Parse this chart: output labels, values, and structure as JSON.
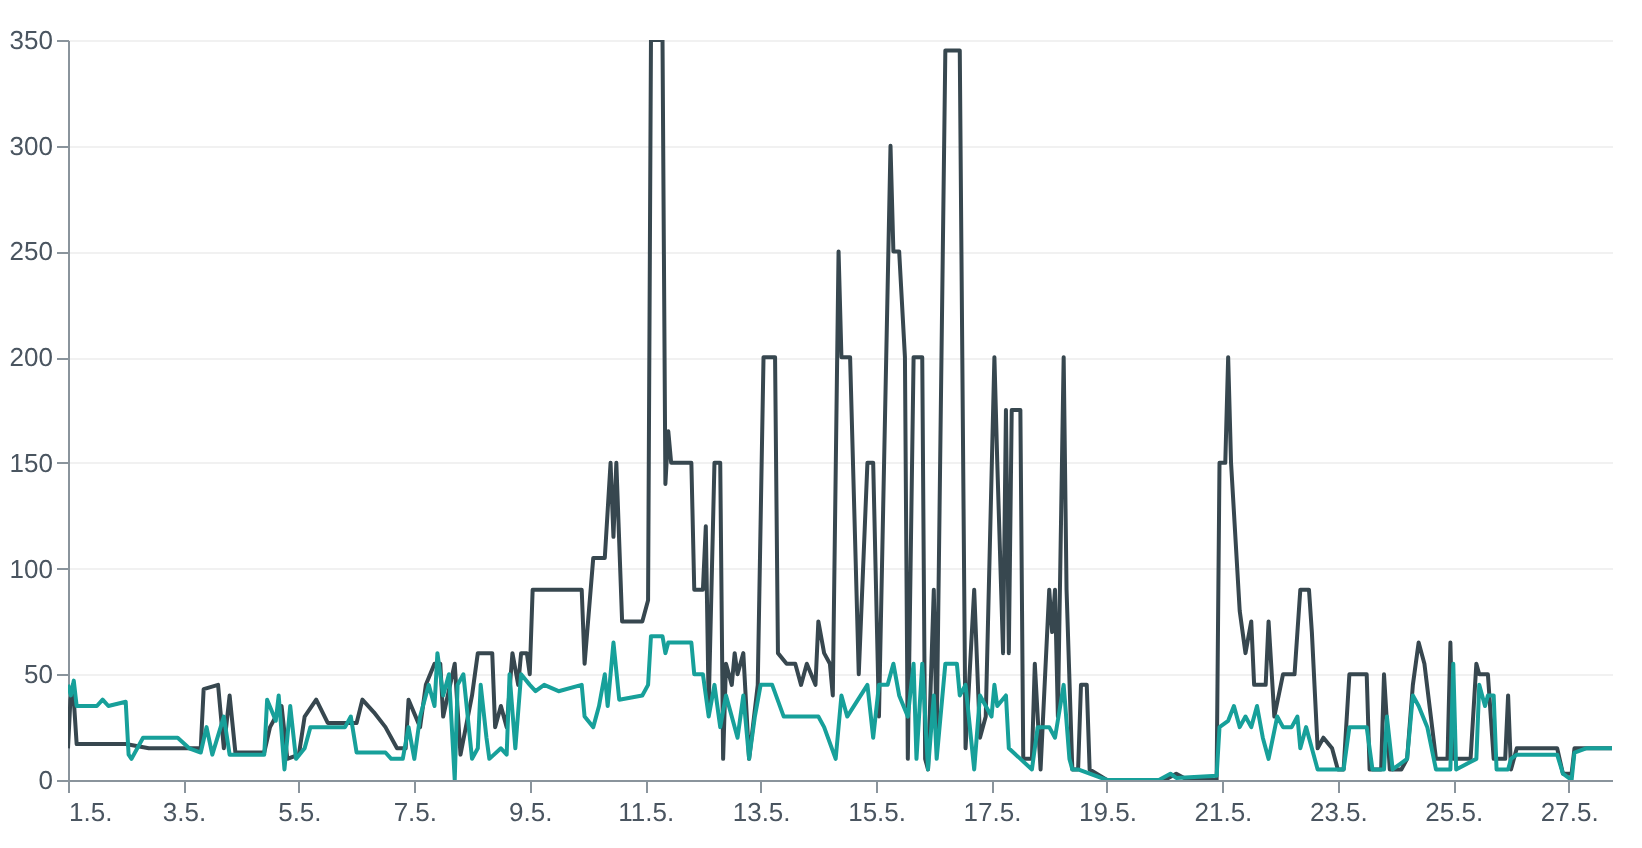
{
  "chart_data": {
    "type": "line",
    "xlim": [
      "--05-01",
      "--05-27T18:00"
    ],
    "xticks": [
      {
        "value": "--05-01",
        "label": "1.5."
      },
      {
        "value": "--05-03",
        "label": "3.5."
      },
      {
        "value": "--05-05",
        "label": "5.5."
      },
      {
        "value": "--05-07",
        "label": "7.5."
      },
      {
        "value": "--05-09",
        "label": "9.5."
      },
      {
        "value": "--05-11",
        "label": "11.5."
      },
      {
        "value": "--05-13",
        "label": "13.5."
      },
      {
        "value": "--05-15",
        "label": "15.5."
      },
      {
        "value": "--05-17",
        "label": "17.5."
      },
      {
        "value": "--05-19",
        "label": "19.5."
      },
      {
        "value": "--05-21",
        "label": "21.5."
      },
      {
        "value": "--05-23",
        "label": "23.5."
      },
      {
        "value": "--05-25",
        "label": "25.5."
      },
      {
        "value": "--05-27",
        "label": "27.5."
      }
    ],
    "ylim": [
      0,
      350
    ],
    "yticks": [
      0,
      50,
      100,
      150,
      200,
      250,
      300,
      350
    ],
    "grid": "y",
    "line_style": "solid",
    "series": [
      {
        "color": "#37474f",
        "x": [
          "--05-01T00:00",
          "--05-01T01:00",
          "--05-01T02:00",
          "--05-01T03:36",
          "--05-01T12:00",
          "--05-02T00:00",
          "--05-02T09:36",
          "--05-03T07:12",
          "--05-03T08:24",
          "--05-03T14:24",
          "--05-03T16:48",
          "--05-03T19:12",
          "--05-03T21:36",
          "--05-04T09:36",
          "--05-04T12:00",
          "--05-04T16:48",
          "--05-04T19:12",
          "--05-05T00:00",
          "--05-05T02:24",
          "--05-05T07:12",
          "--05-05T12:00",
          "--05-06T00:00",
          "--05-06T02:24",
          "--05-06T07:12",
          "--05-06T12:00",
          "--05-06T16:48",
          "--05-06T20:24",
          "--05-06T21:36",
          "--05-07T02:24",
          "--05-07T04:48",
          "--05-07T08:24",
          "--05-07T10:48",
          "--05-07T12:00",
          "--05-07T16:48",
          "--05-07T19:12",
          "--05-08T00:00",
          "--05-08T02:24",
          "--05-08T08:24",
          "--05-08T09:36",
          "--05-08T12:00",
          "--05-08T14:24",
          "--05-08T16:48",
          "--05-08T19:12",
          "--05-08T20:24",
          "--05-08T22:48",
          "--05-09T00:00",
          "--05-09T01:12",
          "--05-09T21:36",
          "--05-09T22:48",
          "--05-10T02:24",
          "--05-10T07:12",
          "--05-10T09:36",
          "--05-10T10:48",
          "--05-10T12:00",
          "--05-10T14:24",
          "--05-10T22:48",
          "--05-11T01:12",
          "--05-11T02:24",
          "--05-11T07:12",
          "--05-11T08:24",
          "--05-11T09:36",
          "--05-11T10:48",
          "--05-11T19:12",
          "--05-11T20:24",
          "--05-12T00:00",
          "--05-12T01:12",
          "--05-12T02:24",
          "--05-12T04:48",
          "--05-12T07:12",
          "--05-12T08:24",
          "--05-12T09:36",
          "--05-12T12:00",
          "--05-12T13:12",
          "--05-12T14:24",
          "--05-12T16:48",
          "--05-12T19:12",
          "--05-12T22:48",
          "--05-13T01:12",
          "--05-13T06:00",
          "--05-13T07:12",
          "--05-13T10:48",
          "--05-13T14:24",
          "--05-13T16:48",
          "--05-13T19:12",
          "--05-13T22:48",
          "--05-14T00:00",
          "--05-14T02:24",
          "--05-14T04:48",
          "--05-14T06:00",
          "--05-14T08:24",
          "--05-14T09:36",
          "--05-14T13:12",
          "--05-14T16:48",
          "--05-14T20:24",
          "--05-14T22:48",
          "--05-15T01:12",
          "--05-15T06:00",
          "--05-15T07:12",
          "--05-15T09:36",
          "--05-15T12:00",
          "--05-15T13:12",
          "--05-15T15:36",
          "--05-15T19:12",
          "--05-15T20:24",
          "--05-15T21:36",
          "--05-16T00:00",
          "--05-16T01:12",
          "--05-16T04:48",
          "--05-16T10:48",
          "--05-16T13:12",
          "--05-16T16:48",
          "--05-16T19:12",
          "--05-16T21:36",
          "--05-17T01:12",
          "--05-17T02:24",
          "--05-17T04:48",
          "--05-17T06:00",
          "--05-17T07:12",
          "--05-17T08:24",
          "--05-17T12:00",
          "--05-17T13:12",
          "--05-17T16:48",
          "--05-17T18:00",
          "--05-17T20:24",
          "--05-18T00:00",
          "--05-18T01:12",
          "--05-18T02:24",
          "--05-18T03:36",
          "--05-18T06:00",
          "--05-18T07:12",
          "--05-18T09:36",
          "--05-18T12:00",
          "--05-18T13:12",
          "--05-18T15:36",
          "--05-18T16:48",
          "--05-19T00:00",
          "--05-20T00:00",
          "--05-20T04:48",
          "--05-20T09:36",
          "--05-20T21:36",
          "--05-20T22:48",
          "--05-21T01:12",
          "--05-21T02:24",
          "--05-21T03:36",
          "--05-21T07:12",
          "--05-21T09:36",
          "--05-21T12:00",
          "--05-21T13:12",
          "--05-21T18:00",
          "--05-21T19:12",
          "--05-21T21:36",
          "--05-22T01:12",
          "--05-22T06:00",
          "--05-22T08:24",
          "--05-22T12:00",
          "--05-22T13:12",
          "--05-22T15:36",
          "--05-22T18:00",
          "--05-22T21:36",
          "--05-23T00:00",
          "--05-23T02:24",
          "--05-23T04:48",
          "--05-23T12:00",
          "--05-23T13:12",
          "--05-23T18:00",
          "--05-23T19:12",
          "--05-23T21:36",
          "--05-24T02:24",
          "--05-24T04:48",
          "--05-24T07:12",
          "--05-24T09:36",
          "--05-24T12:00",
          "--05-24T16:48",
          "--05-24T21:36",
          "--05-24T22:48",
          "--05-25T00:00",
          "--05-25T07:12",
          "--05-25T09:36",
          "--05-25T10:48",
          "--05-25T14:24",
          "--05-25T16:48",
          "--05-25T21:36",
          "--05-25T22:48",
          "--05-26T00:00",
          "--05-26T02:24",
          "--05-26T19:12",
          "--05-26T21:36",
          "--05-27T01:12",
          "--05-27T02:24",
          "--05-27T18:00"
        ],
        "values": [
          15,
          38,
          45,
          17,
          17,
          17,
          15,
          15,
          43,
          45,
          15,
          40,
          13,
          13,
          25,
          35,
          10,
          12,
          30,
          38,
          27,
          27,
          38,
          32,
          25,
          15,
          15,
          38,
          25,
          45,
          55,
          55,
          30,
          55,
          12,
          40,
          60,
          60,
          25,
          35,
          25,
          60,
          45,
          60,
          60,
          50,
          90,
          90,
          55,
          105,
          105,
          150,
          115,
          150,
          75,
          75,
          85,
          350,
          350,
          140,
          165,
          150,
          150,
          90,
          90,
          120,
          35,
          150,
          150,
          10,
          55,
          45,
          60,
          50,
          60,
          10,
          45,
          200,
          200,
          60,
          55,
          55,
          45,
          55,
          45,
          75,
          60,
          55,
          40,
          250,
          200,
          200,
          50,
          150,
          150,
          30,
          300,
          250,
          250,
          200,
          10,
          200,
          200,
          10,
          5,
          90,
          20,
          345,
          345,
          15,
          90,
          20,
          30,
          200,
          150,
          60,
          175,
          60,
          175,
          175,
          10,
          10,
          55,
          5,
          90,
          70,
          90,
          30,
          200,
          90,
          5,
          5,
          45,
          45,
          5,
          0,
          0,
          3,
          0,
          0,
          150,
          150,
          200,
          150,
          80,
          60,
          75,
          45,
          45,
          75,
          30,
          50,
          50,
          90,
          90,
          70,
          15,
          20,
          15,
          5,
          5,
          50,
          50,
          5,
          5,
          50,
          5,
          5,
          10,
          45,
          65,
          55,
          10,
          10,
          65,
          10,
          10,
          55,
          50,
          50,
          10,
          10,
          40,
          5,
          15,
          15,
          3,
          3,
          15,
          15
        ]
      },
      {
        "color": "#17a09a",
        "x": [
          "--05-01T00:00",
          "--05-01T01:12",
          "--05-01T02:24",
          "--05-01T03:36",
          "--05-01T12:00",
          "--05-01T14:24",
          "--05-01T16:48",
          "--05-02T00:00",
          "--05-02T01:12",
          "--05-02T02:24",
          "--05-02T07:12",
          "--05-02T21:36",
          "--05-03T02:24",
          "--05-03T07:12",
          "--05-03T09:36",
          "--05-03T12:00",
          "--05-03T16:48",
          "--05-03T19:12",
          "--05-04T09:36",
          "--05-04T10:48",
          "--05-04T14:24",
          "--05-04T15:36",
          "--05-04T18:00",
          "--05-04T20:24",
          "--05-04T22:48",
          "--05-05T02:24",
          "--05-05T04:48",
          "--05-05T19:12",
          "--05-05T21:36",
          "--05-06T00:00",
          "--05-06T12:00",
          "--05-06T14:24",
          "--05-06T19:12",
          "--05-06T21:36",
          "--05-07T00:00",
          "--05-07T02:24",
          "--05-07T06:00",
          "--05-07T08:24",
          "--05-07T09:36",
          "--05-07T12:00",
          "--05-07T14:24",
          "--05-07T16:48",
          "--05-07T18:00",
          "--05-07T20:24",
          "--05-08T00:00",
          "--05-08T02:24",
          "--05-08T03:36",
          "--05-08T06:00",
          "--05-08T07:12",
          "--05-08T12:00",
          "--05-08T14:24",
          "--05-08T15:36",
          "--05-08T18:00",
          "--05-08T20:24",
          "--05-09T00:00",
          "--05-09T02:24",
          "--05-09T06:00",
          "--05-09T12:00",
          "--05-09T21:36",
          "--05-09T22:48",
          "--05-10T02:24",
          "--05-10T04:48",
          "--05-10T07:12",
          "--05-10T08:24",
          "--05-10T10:48",
          "--05-10T13:12",
          "--05-10T22:48",
          "--05-11T01:12",
          "--05-11T02:24",
          "--05-11T07:12",
          "--05-11T08:24",
          "--05-11T09:36",
          "--05-11T19:12",
          "--05-11T20:24",
          "--05-12T00:00",
          "--05-12T02:24",
          "--05-12T04:48",
          "--05-12T07:12",
          "--05-12T09:36",
          "--05-12T12:00",
          "--05-12T14:24",
          "--05-12T16:48",
          "--05-12T19:12",
          "--05-12T21:36",
          "--05-13T00:00",
          "--05-13T04:48",
          "--05-13T09:36",
          "--05-14T00:00",
          "--05-14T02:24",
          "--05-14T07:12",
          "--05-14T09:36",
          "--05-14T12:00",
          "--05-14T20:24",
          "--05-14T22:48",
          "--05-15T01:12",
          "--05-15T04:48",
          "--05-15T07:12",
          "--05-15T09:36",
          "--05-15T13:12",
          "--05-15T15:36",
          "--05-15T16:48",
          "--05-15T19:12",
          "--05-15T21:36",
          "--05-16T00:00",
          "--05-16T01:12",
          "--05-16T04:48",
          "--05-16T09:36",
          "--05-16T10:48",
          "--05-16T13:12",
          "--05-16T16:48",
          "--05-16T19:12",
          "--05-17T00:00",
          "--05-17T01:12",
          "--05-17T02:24",
          "--05-17T06:00",
          "--05-17T07:12",
          "--05-17T12:00",
          "--05-17T16:48",
          "--05-17T19:12",
          "--05-18T00:00",
          "--05-18T02:24",
          "--05-18T06:00",
          "--05-18T08:24",
          "--05-18T09:36",
          "--05-18T12:00",
          "--05-18T16:48",
          "--05-19T00:00",
          "--05-19T21:36",
          "--05-20T02:24",
          "--05-20T04:48",
          "--05-20T21:36",
          "--05-20T22:48",
          "--05-21T02:24",
          "--05-21T04:48",
          "--05-21T07:12",
          "--05-21T09:36",
          "--05-21T12:00",
          "--05-21T14:24",
          "--05-21T16:48",
          "--05-21T19:12",
          "--05-21T22:48",
          "--05-22T01:12",
          "--05-22T04:48",
          "--05-22T07:12",
          "--05-22T08:24",
          "--05-22T10:48",
          "--05-22T13:12",
          "--05-22T15:36",
          "--05-23T02:24",
          "--05-23T04:48",
          "--05-23T12:00",
          "--05-23T14:24",
          "--05-23T19:12",
          "--05-23T20:24",
          "--05-23T22:48",
          "--05-24T04:48",
          "--05-24T07:12",
          "--05-24T09:36",
          "--05-24T13:12",
          "--05-24T16:48",
          "--05-24T22:48",
          "--05-25T00:00",
          "--05-25T01:12",
          "--05-25T09:36",
          "--05-25T10:48",
          "--05-25T13:12",
          "--05-25T14:24",
          "--05-25T16:48",
          "--05-25T18:00",
          "--05-25T22:48",
          "--05-26T00:00",
          "--05-26T02:24",
          "--05-26T14:24",
          "--05-26T19:12",
          "--05-26T21:36",
          "--05-27T01:12",
          "--05-27T02:24",
          "--05-27T07:12",
          "--05-27T18:00"
        ],
        "values": [
          45,
          40,
          47,
          35,
          35,
          38,
          35,
          37,
          12,
          10,
          20,
          20,
          15,
          13,
          25,
          12,
          30,
          12,
          12,
          38,
          28,
          40,
          5,
          35,
          10,
          15,
          25,
          25,
          30,
          13,
          13,
          10,
          10,
          25,
          10,
          30,
          45,
          35,
          60,
          40,
          50,
          0,
          45,
          50,
          10,
          15,
          45,
          20,
          10,
          15,
          12,
          50,
          15,
          50,
          45,
          42,
          45,
          42,
          45,
          30,
          25,
          35,
          50,
          35,
          65,
          38,
          40,
          45,
          68,
          68,
          60,
          65,
          65,
          50,
          50,
          30,
          45,
          25,
          40,
          30,
          20,
          40,
          10,
          30,
          45,
          45,
          30,
          30,
          25,
          10,
          40,
          30,
          45,
          20,
          45,
          45,
          55,
          40,
          30,
          55,
          10,
          55,
          5,
          40,
          10,
          55,
          55,
          40,
          45,
          5,
          40,
          30,
          45,
          35,
          40,
          15,
          10,
          5,
          25,
          25,
          20,
          45,
          10,
          5,
          5,
          3,
          0,
          0,
          3,
          1,
          2,
          25,
          28,
          35,
          25,
          30,
          25,
          35,
          20,
          10,
          30,
          25,
          25,
          30,
          15,
          25,
          15,
          5,
          5,
          25,
          25,
          5,
          5,
          30,
          5,
          10,
          40,
          35,
          25,
          5,
          5,
          55,
          5,
          10,
          45,
          35,
          40,
          40,
          5,
          5,
          10,
          12,
          12,
          12,
          3,
          0,
          13,
          15,
          15
        ]
      }
    ]
  }
}
